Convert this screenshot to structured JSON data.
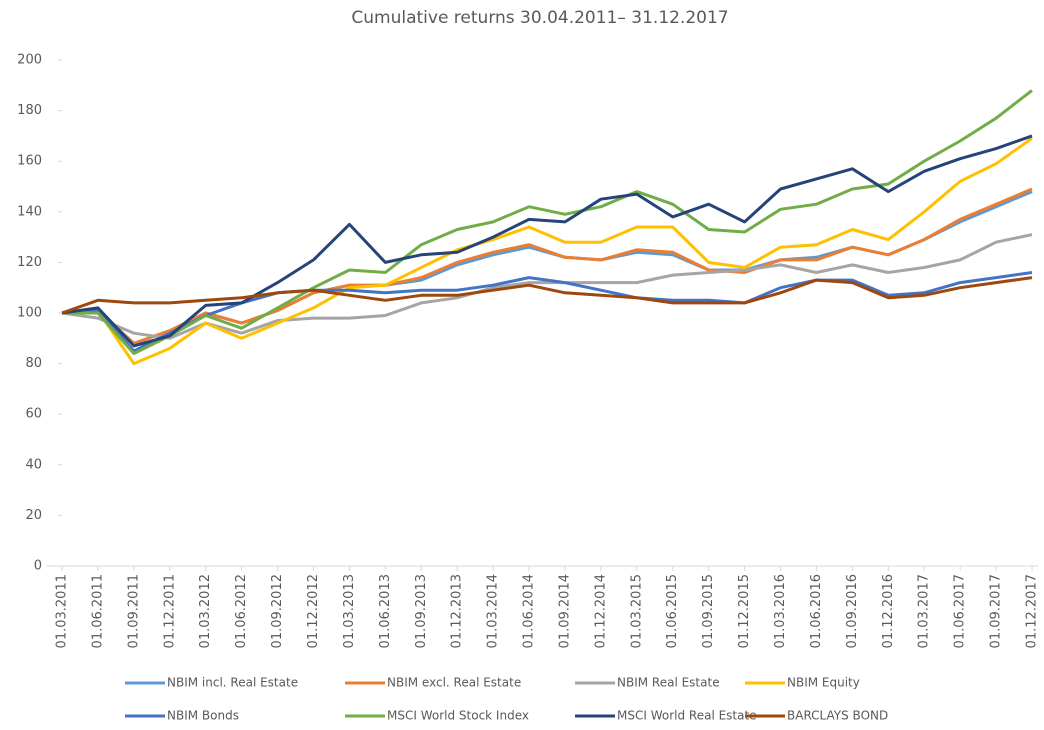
{
  "chart_data": {
    "type": "line",
    "title": "Cumulative returns 30.04.2011– 31.12.2017",
    "categories": [
      "01.03.2011",
      "01.06.2011",
      "01.09.2011",
      "01.12.2011",
      "01.03.2012",
      "01.06.2012",
      "01.09.2012",
      "01.12.2012",
      "01.03.2013",
      "01.06.2013",
      "01.09.2013",
      "01.12.2013",
      "01.03.2014",
      "01.06.2014",
      "01.09.2014",
      "01.12.2014",
      "01.03.2015",
      "01.06.2015",
      "01.09.2015",
      "01.12.2015",
      "01.03.2016",
      "01.06.2016",
      "01.09.2016",
      "01.12.2016",
      "01.03.2017",
      "01.06.2017",
      "01.09.2017",
      "01.12.2017"
    ],
    "series": [
      {
        "name": "NBIM incl. Real Estate",
        "color": "#5b9bd5",
        "values": [
          100,
          101,
          88,
          93,
          100,
          96,
          101,
          108,
          111,
          111,
          113,
          119,
          123,
          126,
          122,
          121,
          124,
          123,
          117,
          117,
          121,
          122,
          126,
          123,
          129,
          136,
          142,
          148
        ]
      },
      {
        "name": "NBIM excl. Real Estate",
        "color": "#ed7d31",
        "values": [
          100,
          101,
          88,
          93,
          100,
          96,
          101,
          108,
          111,
          111,
          114,
          120,
          124,
          127,
          122,
          121,
          125,
          124,
          117,
          116,
          121,
          121,
          126,
          123,
          129,
          137,
          143,
          149
        ]
      },
      {
        "name": "NBIM Real Estate",
        "color": "#a5a5a5",
        "values": [
          100,
          98,
          92,
          90,
          96,
          92,
          97,
          98,
          98,
          99,
          104,
          106,
          110,
          112,
          112,
          112,
          112,
          115,
          116,
          117,
          119,
          116,
          119,
          116,
          118,
          121,
          128,
          131
        ]
      },
      {
        "name": "NBIM Equity",
        "color": "#ffc000",
        "values": [
          100,
          101,
          80,
          86,
          96,
          90,
          96,
          102,
          110,
          111,
          118,
          125,
          129,
          134,
          128,
          128,
          134,
          134,
          120,
          118,
          126,
          127,
          133,
          129,
          140,
          152,
          159,
          169
        ]
      },
      {
        "name": "NBIM Bonds",
        "color": "#4472c4",
        "values": [
          100,
          101,
          85,
          92,
          99,
          104,
          108,
          109,
          109,
          108,
          109,
          109,
          111,
          114,
          112,
          109,
          106,
          105,
          105,
          104,
          110,
          113,
          113,
          107,
          108,
          112,
          114,
          116
        ]
      },
      {
        "name": "MSCI World Stock Index",
        "color": "#70ad47",
        "values": [
          100,
          100,
          84,
          91,
          99,
          94,
          102,
          110,
          117,
          116,
          127,
          133,
          136,
          142,
          139,
          142,
          148,
          143,
          133,
          132,
          141,
          143,
          149,
          151,
          160,
          168,
          177,
          188
        ]
      },
      {
        "name": "MSCI World Real Estate",
        "color": "#264478",
        "values": [
          100,
          102,
          87,
          91,
          103,
          104,
          112,
          121,
          135,
          120,
          123,
          124,
          130,
          137,
          136,
          145,
          147,
          138,
          143,
          136,
          149,
          153,
          157,
          148,
          156,
          161,
          165,
          170
        ]
      },
      {
        "name": "BARCLAYS BOND",
        "color": "#9e480e",
        "values": [
          100,
          105,
          104,
          104,
          105,
          106,
          108,
          109,
          107,
          105,
          107,
          107,
          109,
          111,
          108,
          107,
          106,
          104,
          104,
          104,
          108,
          113,
          112,
          106,
          107,
          110,
          112,
          114
        ]
      }
    ],
    "ylim": [
      0,
      200
    ],
    "yticks": [
      0,
      20,
      40,
      60,
      80,
      100,
      120,
      140,
      160,
      180,
      200
    ],
    "grid": false
  }
}
